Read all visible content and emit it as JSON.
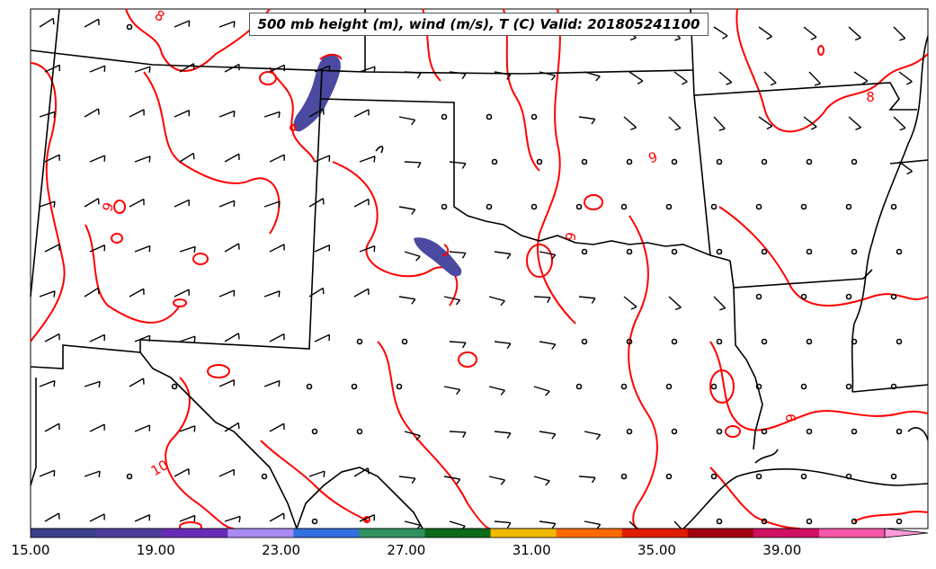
{
  "title": "500 mb height (m), wind (m/s), T (C) Valid: 201805241100",
  "contour_labels": [
    {
      "text": "8",
      "ang": 30
    },
    {
      "text": "9",
      "ang": -70
    },
    {
      "text": "9",
      "ang": -20
    },
    {
      "text": "9",
      "ang": -80
    },
    {
      "text": "9",
      "ang": -90
    },
    {
      "text": "10",
      "ang": -30
    },
    {
      "text": "8",
      "ang": 0
    }
  ],
  "colorbar": {
    "ticks": [
      "15.00",
      "19.00",
      "23.00",
      "27.00",
      "31.00",
      "35.00",
      "39.00"
    ],
    "colors": [
      "#3c3f8c",
      "#4b3d9a",
      "#6a2ab8",
      "#a98af0",
      "#2f6fe0",
      "#2f9160",
      "#0b6b1a",
      "#f0b800",
      "#ff6a00",
      "#e01c00",
      "#a00010",
      "#d01060",
      "#f556a8",
      "#ff9ad8"
    ]
  },
  "colors": {
    "temperature_contour": "#ff0000",
    "boundaries": "#000000",
    "wind_speed_fill": "#4a4aa0"
  }
}
